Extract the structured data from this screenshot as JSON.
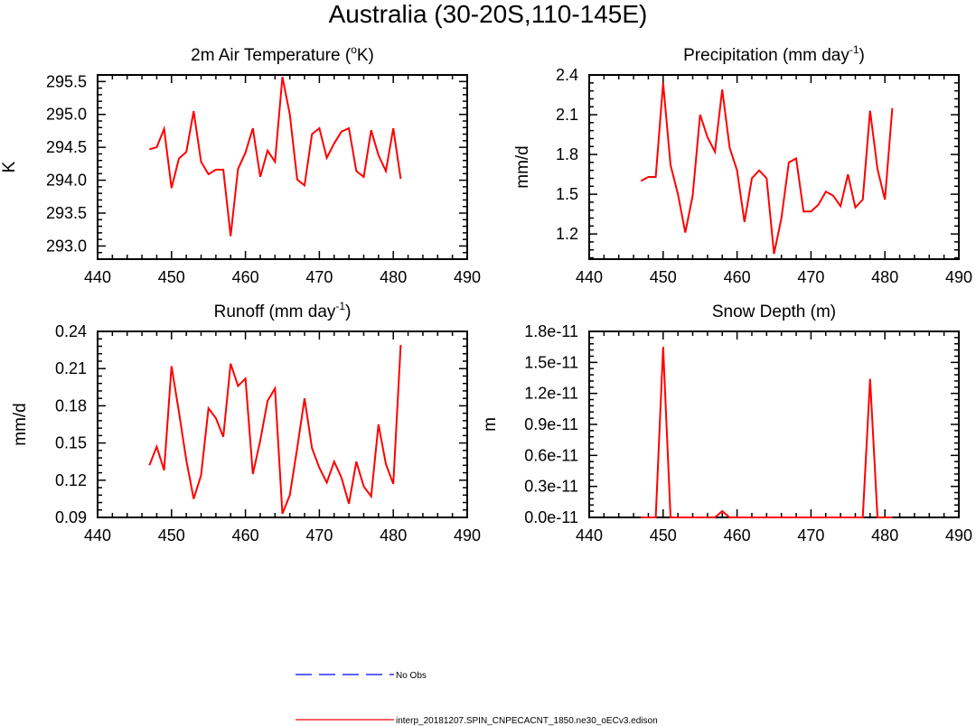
{
  "figure": {
    "title": "Australia (30-20S,110-145E)"
  },
  "colors": {
    "model": "#ff0000",
    "obs": "#0000ff",
    "axis": "#000000"
  },
  "legend": {
    "obs_label": "No Obs",
    "model_label": "interp_20181207.SPIN_CNPECACNT_1850.ne30_oECv3.edison"
  },
  "chart_data": [
    {
      "id": "temp",
      "type": "line",
      "title": "2m Air Temperature (",
      "title_sup": "o",
      "title_after": "K)",
      "ylabel": "K",
      "xlim": [
        440,
        490
      ],
      "ylim": [
        292.8,
        295.6
      ],
      "xticks": [
        "440",
        "450",
        "460",
        "470",
        "480",
        "490"
      ],
      "yticks": [
        "293.0",
        "293.5",
        "294.0",
        "294.5",
        "295.0",
        "295.5"
      ],
      "series": [
        {
          "name": "interp_20181207.SPIN_CNPECACNT_1850.ne30_oECv3.edison",
          "x": [
            447,
            448,
            449,
            450,
            451,
            452,
            453,
            454,
            455,
            456,
            457,
            458,
            459,
            460,
            461,
            462,
            463,
            464,
            465,
            466,
            467,
            468,
            469,
            470,
            471,
            472,
            473,
            474,
            475,
            476,
            477,
            478,
            479,
            480,
            481
          ],
          "values": [
            294.47,
            294.5,
            294.78,
            293.88,
            294.33,
            294.43,
            295.05,
            294.28,
            294.09,
            294.16,
            294.16,
            293.15,
            294.17,
            294.42,
            294.79,
            294.05,
            294.45,
            294.28,
            295.57,
            295.0,
            294.01,
            293.92,
            294.7,
            294.79,
            294.34,
            294.56,
            294.74,
            294.79,
            294.14,
            294.05,
            294.76,
            294.38,
            294.14,
            294.79,
            294.02
          ]
        }
      ]
    },
    {
      "id": "precip",
      "type": "line",
      "title": "Precipitation (mm day",
      "title_sup": "-1",
      "title_after": ")",
      "ylabel": "mm/d",
      "xlim": [
        440,
        490
      ],
      "ylim": [
        1.01,
        2.4
      ],
      "xticks": [
        "440",
        "450",
        "460",
        "470",
        "480",
        "490"
      ],
      "yticks": [
        "1.2",
        "1.5",
        "1.8",
        "2.1",
        "2.4"
      ],
      "series": [
        {
          "name": "interp_20181207.SPIN_CNPECACNT_1850.ne30_oECv3.edison",
          "x": [
            447,
            448,
            449,
            450,
            451,
            452,
            453,
            454,
            455,
            456,
            457,
            458,
            459,
            460,
            461,
            462,
            463,
            464,
            465,
            466,
            467,
            468,
            469,
            470,
            471,
            472,
            473,
            474,
            475,
            476,
            477,
            478,
            479,
            480,
            481
          ],
          "values": [
            1.6,
            1.63,
            1.63,
            2.34,
            1.72,
            1.5,
            1.21,
            1.49,
            2.1,
            1.93,
            1.82,
            2.29,
            1.85,
            1.68,
            1.29,
            1.62,
            1.68,
            1.62,
            1.05,
            1.32,
            1.74,
            1.77,
            1.37,
            1.37,
            1.42,
            1.52,
            1.49,
            1.41,
            1.65,
            1.4,
            1.46,
            2.13,
            1.69,
            1.46,
            2.15
          ]
        }
      ]
    },
    {
      "id": "runoff",
      "type": "line",
      "title": "Runoff (mm day",
      "title_sup": "-1",
      "title_after": ")",
      "ylabel": "mm/d",
      "xlim": [
        440,
        490
      ],
      "ylim": [
        0.09,
        0.24
      ],
      "xticks": [
        "440",
        "450",
        "460",
        "470",
        "480",
        "490"
      ],
      "yticks": [
        "0.09",
        "0.12",
        "0.15",
        "0.18",
        "0.21",
        "0.24"
      ],
      "series": [
        {
          "name": "interp_20181207.SPIN_CNPECACNT_1850.ne30_oECv3.edison",
          "x": [
            447,
            448,
            449,
            450,
            451,
            452,
            453,
            454,
            455,
            456,
            457,
            458,
            459,
            460,
            461,
            462,
            463,
            464,
            465,
            466,
            467,
            468,
            469,
            470,
            471,
            472,
            473,
            474,
            475,
            476,
            477,
            478,
            479,
            480,
            481
          ],
          "values": [
            0.132,
            0.147,
            0.128,
            0.212,
            0.175,
            0.136,
            0.105,
            0.124,
            0.178,
            0.17,
            0.155,
            0.214,
            0.196,
            0.202,
            0.125,
            0.152,
            0.184,
            0.194,
            0.093,
            0.108,
            0.146,
            0.186,
            0.146,
            0.13,
            0.118,
            0.135,
            0.122,
            0.101,
            0.135,
            0.115,
            0.107,
            0.165,
            0.133,
            0.117,
            0.229
          ]
        }
      ]
    },
    {
      "id": "snow",
      "type": "line",
      "title": "Snow Depth (m)",
      "title_sup": "",
      "title_after": "",
      "ylabel": "m",
      "xlim": [
        440,
        490
      ],
      "ylim": [
        0,
        1.8e-11
      ],
      "xticks": [
        "440",
        "450",
        "460",
        "470",
        "480",
        "490"
      ],
      "yticks": [
        "0.0e-11",
        "0.3e-11",
        "0.6e-11",
        "0.9e-11",
        "1.2e-11",
        "1.5e-11",
        "1.8e-11"
      ],
      "series": [
        {
          "name": "interp_20181207.SPIN_CNPECACNT_1850.ne30_oECv3.edison",
          "x": [
            447,
            448,
            449,
            450,
            451,
            452,
            453,
            454,
            455,
            456,
            457,
            458,
            459,
            460,
            461,
            462,
            463,
            464,
            465,
            466,
            467,
            468,
            469,
            470,
            471,
            472,
            473,
            474,
            475,
            476,
            477,
            478,
            479,
            480,
            481
          ],
          "values": [
            0,
            0,
            0,
            1.65e-11,
            0,
            0,
            0,
            0,
            0,
            0,
            0,
            6e-13,
            0,
            0,
            0,
            0,
            0,
            0,
            0,
            0,
            0,
            0,
            0,
            0,
            0,
            0,
            0,
            0,
            0,
            0,
            0,
            1.34e-11,
            0,
            0,
            0
          ]
        }
      ]
    }
  ]
}
